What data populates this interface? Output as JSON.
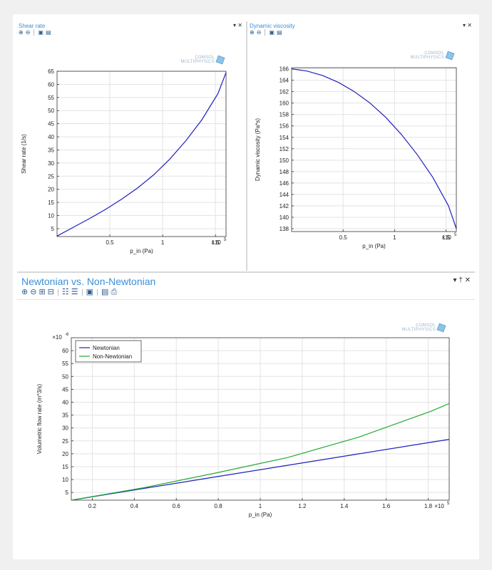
{
  "panels": {
    "shear": {
      "title": "Shear rate",
      "buttons": "▾ ✕",
      "logo": [
        "COMSOL",
        "MULTIPHYSICS"
      ]
    },
    "viscosity": {
      "title": "Dynamic viscosity",
      "buttons": "▾ ✕",
      "logo": [
        "COMSOL",
        "MULTIPHYSICS"
      ]
    },
    "flow": {
      "title": "Newtonian vs. Non-Newtonian",
      "buttons": "▾ † ✕",
      "logo": [
        "COMSOL",
        "MULTIPHYSICS"
      ]
    }
  },
  "icons": {
    "small_toolbar": [
      "zoom-in-icon",
      "zoom-out-icon",
      "lock-icon",
      "camera-icon"
    ],
    "big_toolbar": [
      "zoom-in-icon",
      "zoom-out-icon",
      "zoom-box-icon",
      "zoom-extents-icon",
      "grid-icon",
      "table-icon",
      "lock-icon",
      "camera-icon",
      "print-icon"
    ]
  },
  "colors": {
    "title": "#3a8fd8",
    "newtonian": "#1f1fbf",
    "non_newtonian": "#22aa33",
    "curve": "#1f1fbf"
  },
  "chart_data": [
    {
      "type": "line",
      "title": "",
      "xlabel": "p_in (Pa)",
      "ylabel": "Shear rate (1/s)",
      "x_exponent": "×10",
      "x_exponent_power": "5",
      "xlim": [
        0.1,
        1.15
      ],
      "ylim": [
        2,
        65
      ],
      "xticks": [
        "0.5",
        "1",
        "1.5"
      ],
      "xtick_values": [
        0.5,
        1.0,
        1.5
      ],
      "yticks": [
        "5",
        "10",
        "15",
        "20",
        "25",
        "30",
        "35",
        "40",
        "45",
        "50",
        "55",
        "60",
        "65"
      ],
      "ytick_values": [
        5,
        10,
        15,
        20,
        25,
        30,
        35,
        40,
        45,
        50,
        55,
        60,
        65
      ],
      "grid": true,
      "series": [
        {
          "x": [
            0.1,
            0.2,
            0.3,
            0.4,
            0.5,
            0.6,
            0.7,
            0.8,
            0.9,
            1.0,
            1.1,
            1.15
          ],
          "values": [
            2.2,
            5.5,
            8.8,
            12.3,
            16.2,
            20.5,
            25.5,
            31.5,
            38.5,
            46.5,
            56.5,
            64.5
          ]
        }
      ]
    },
    {
      "type": "line",
      "title": "",
      "xlabel": "p_in (Pa)",
      "ylabel": "Dynamic viscosity (Pa*s)",
      "x_exponent": "×10",
      "x_exponent_power": "5",
      "xlim": [
        0.1,
        1.15
      ],
      "ylim": [
        137.5,
        166.2
      ],
      "xticks": [
        "0.5",
        "1",
        "1.5"
      ],
      "xtick_values": [
        0.5,
        1.0,
        1.5
      ],
      "yticks": [
        "138",
        "140",
        "142",
        "144",
        "146",
        "148",
        "150",
        "152",
        "154",
        "156",
        "158",
        "160",
        "162",
        "164",
        "166"
      ],
      "ytick_values": [
        138,
        140,
        142,
        144,
        146,
        148,
        150,
        152,
        154,
        156,
        158,
        160,
        162,
        164,
        166
      ],
      "grid": true,
      "series": [
        {
          "x": [
            0.1,
            0.2,
            0.3,
            0.4,
            0.5,
            0.6,
            0.7,
            0.8,
            0.9,
            1.0,
            1.1,
            1.15
          ],
          "values": [
            166.0,
            165.6,
            164.8,
            163.6,
            162.0,
            160.0,
            157.5,
            154.5,
            151.0,
            147.0,
            142.0,
            138.0
          ]
        }
      ]
    },
    {
      "type": "line",
      "title": "",
      "xlabel": "p_in (Pa)",
      "ylabel": "Volumetric flow rate (m^3/s)",
      "x_exponent": "×10",
      "x_exponent_power": "5",
      "y_exponent": "×10",
      "y_exponent_power": "-6",
      "xlim": [
        0.1,
        1.15
      ],
      "ylim": [
        2,
        65
      ],
      "xticks": [
        "0.2",
        "0.4",
        "0.6",
        "0.8",
        "1",
        "1.2",
        "1.4",
        "1.6",
        "1.8"
      ],
      "xtick_values": [
        0.2,
        0.4,
        0.6,
        0.8,
        1.0,
        1.2,
        1.4,
        1.6,
        1.8
      ],
      "yticks": [
        "5",
        "10",
        "15",
        "20",
        "25",
        "30",
        "35",
        "40",
        "45",
        "50",
        "55",
        "60"
      ],
      "ytick_values": [
        5,
        10,
        15,
        20,
        25,
        30,
        35,
        40,
        45,
        50,
        55,
        60
      ],
      "grid": true,
      "legend": "top-left",
      "series": [
        {
          "name": "Newtonian",
          "x": [
            0.1,
            0.3,
            0.5,
            0.7,
            0.9,
            1.1,
            1.15
          ],
          "values": [
            2,
            6.5,
            11,
            15.5,
            20,
            24.5,
            25.6
          ]
        },
        {
          "name": "Non-Newtonian",
          "x": [
            0.1,
            0.3,
            0.5,
            0.7,
            0.9,
            1.1,
            1.15
          ],
          "values": [
            2,
            6.8,
            12.5,
            18.5,
            26.5,
            36.5,
            39.5
          ]
        }
      ]
    }
  ]
}
